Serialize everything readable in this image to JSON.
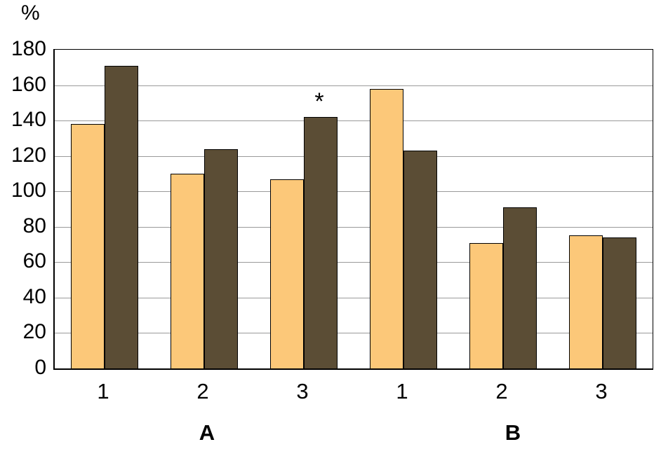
{
  "chart_data": {
    "type": "bar",
    "title": "",
    "ylabel": "%",
    "ylim": [
      0,
      180
    ],
    "ytick_step": 20,
    "grid": "horizontal",
    "legend": "none",
    "categories": [
      "1",
      "2",
      "3",
      "1",
      "2",
      "3"
    ],
    "group_labels": [
      {
        "label": "A",
        "center_category_index": 1
      },
      {
        "label": "B",
        "center_category_index": 4
      }
    ],
    "series": [
      {
        "name": "light-bars",
        "color": "#FCC879",
        "values": [
          138,
          110,
          107,
          158,
          71,
          75
        ]
      },
      {
        "name": "dark-bars",
        "color": "#5B4D35",
        "values": [
          171,
          124,
          142,
          123,
          91,
          74
        ]
      }
    ],
    "annotations": [
      {
        "text": "*",
        "series_index": 1,
        "category_index": 2
      }
    ]
  }
}
